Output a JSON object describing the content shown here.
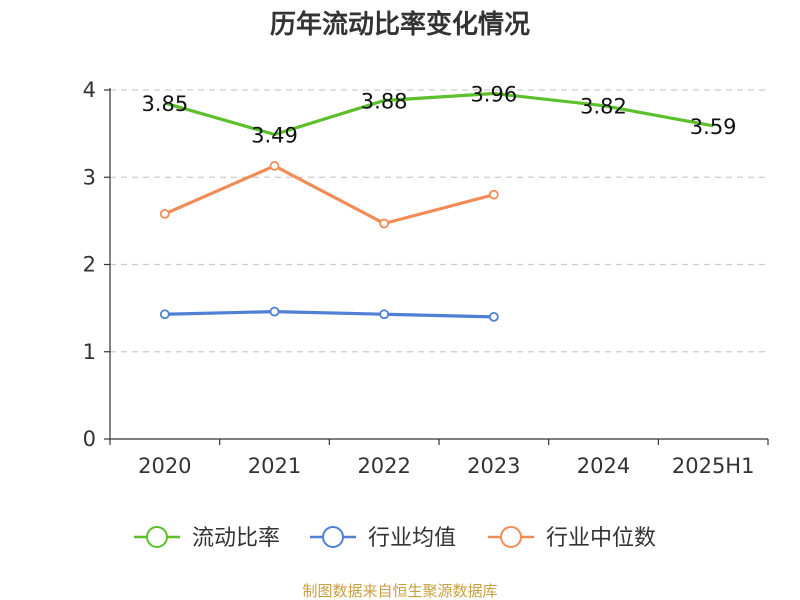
{
  "chart_data": {
    "type": "line",
    "title": "历年流动比率变化情况",
    "categories": [
      "2020",
      "2021",
      "2022",
      "2023",
      "2024",
      "2025H1"
    ],
    "ylim": [
      0,
      4
    ],
    "yticks": [
      0,
      1,
      2,
      3,
      4
    ],
    "grid": true,
    "legend_position": "bottom",
    "series": [
      {
        "name": "流动比率",
        "color": "#5cc02c",
        "values": [
          3.85,
          3.49,
          3.88,
          3.96,
          3.82,
          3.59
        ],
        "show_labels": true,
        "markers": false
      },
      {
        "name": "行业均值",
        "color": "#4f80d6",
        "values": [
          1.43,
          1.46,
          1.43,
          1.4,
          null,
          null
        ],
        "show_labels": false,
        "markers": true
      },
      {
        "name": "行业中位数",
        "color": "#f28c57",
        "values": [
          2.58,
          3.13,
          2.47,
          2.8,
          null,
          null
        ],
        "show_labels": false,
        "markers": true
      }
    ],
    "source": "制图数据来自恒生聚源数据库"
  }
}
